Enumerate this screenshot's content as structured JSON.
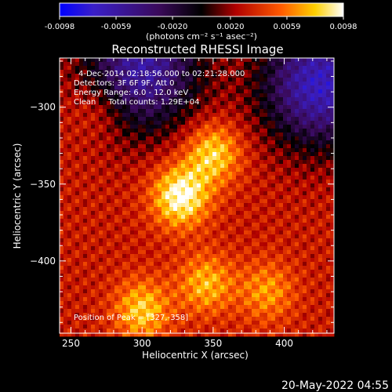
{
  "chart_data": {
    "type": "heatmap",
    "title": "Reconstructed RHESSI Image",
    "xlabel": "Heliocentric X (arcsec)",
    "ylabel": "Heliocentric Y (arcsec)",
    "xlim": [
      242,
      435
    ],
    "ylim": [
      -447,
      -268
    ],
    "x_ticks": [
      250,
      300,
      350,
      400
    ],
    "y_ticks": [
      -300,
      -350,
      -400
    ],
    "colorbar": {
      "label": "(photons cm⁻² s⁻¹ asec⁻²)",
      "range": [
        -0.0098,
        0.0098
      ],
      "ticks": [
        "-0.0098",
        "-0.0059",
        "-0.0020",
        "0.0020",
        "0.0059",
        "0.0098"
      ]
    },
    "info_lines": [
      "4-Dec-2014 02:18:56.000 to 02:21:28.000",
      "Detectors: 3F 6F 9F, Att 0",
      "Energy Range: 6.0 - 12.0 keV",
      "Clean     Total counts: 1.29E+04"
    ],
    "peak_label": "Position of Peak = [327,-358]",
    "peak": [
      327,
      -358
    ],
    "sources": [
      {
        "x": 327,
        "y": -358,
        "amp": 0.0098
      },
      {
        "x": 350,
        "y": -330,
        "amp": 0.0082
      },
      {
        "x": 300,
        "y": -432,
        "amp": 0.0078
      },
      {
        "x": 345,
        "y": -415,
        "amp": 0.0072
      },
      {
        "x": 388,
        "y": -420,
        "amp": 0.0065
      },
      {
        "x": 270,
        "y": -300,
        "amp": 0.0052
      }
    ],
    "negative_regions": [
      {
        "x": 425,
        "y": -285,
        "amp": -0.0072
      },
      {
        "x": 300,
        "y": -275,
        "amp": -0.006
      }
    ]
  },
  "footer": {
    "date_stamp": "20-May-2022 04:55"
  }
}
